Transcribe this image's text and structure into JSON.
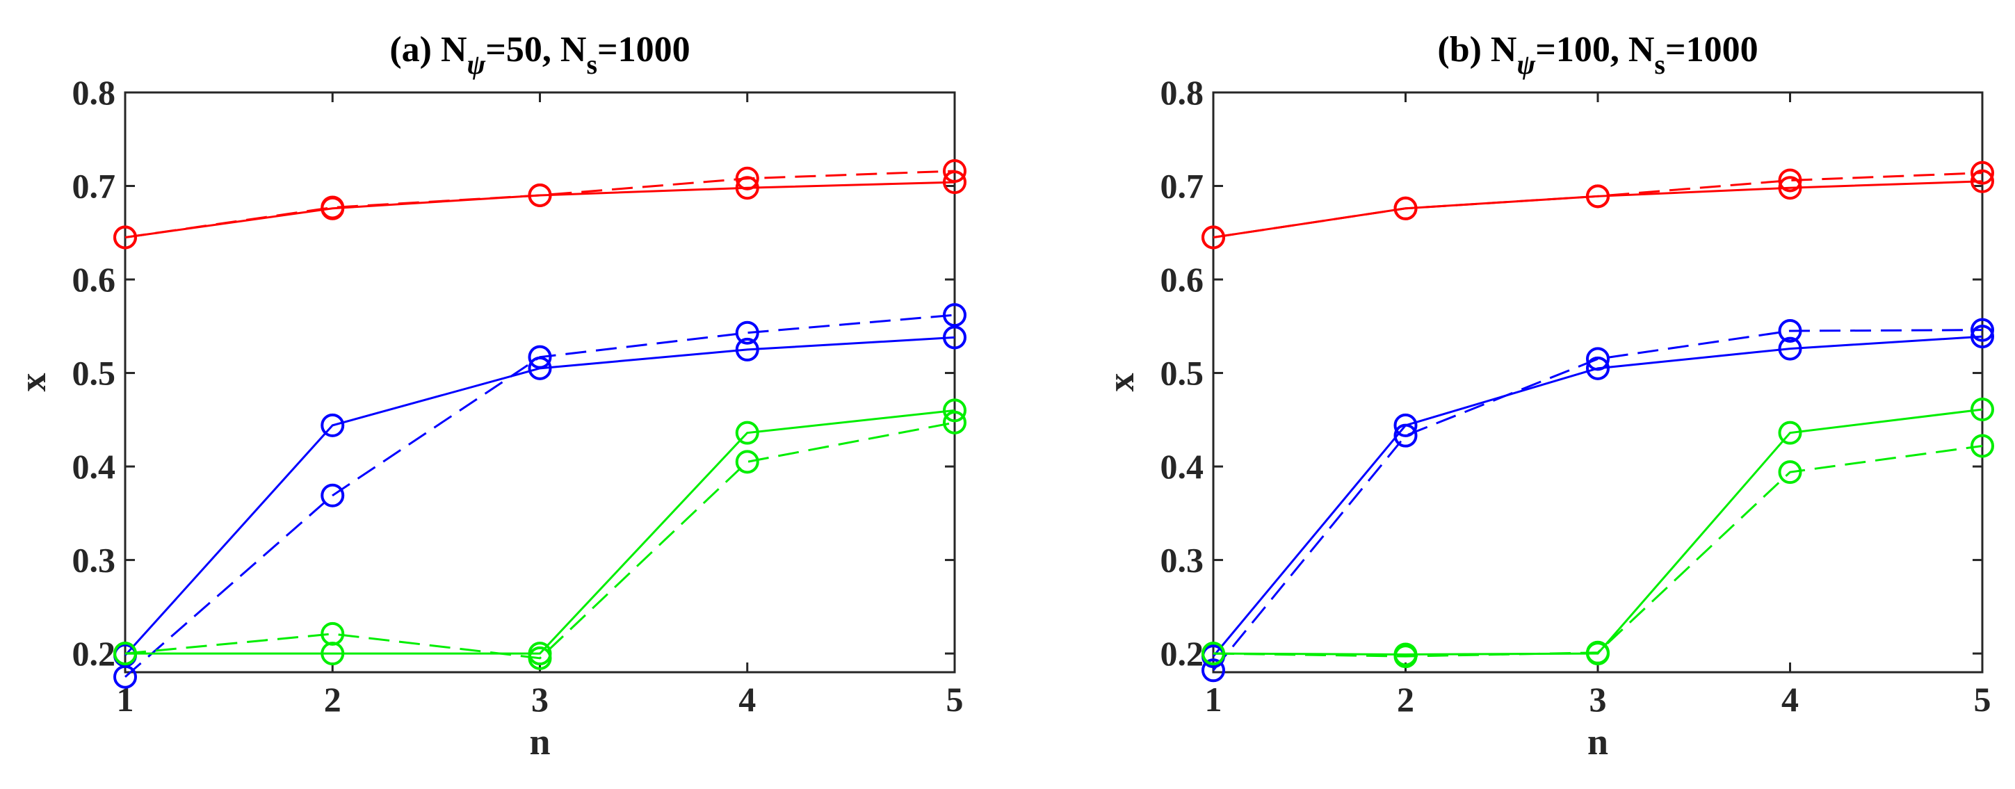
{
  "chart_data": [
    {
      "type": "line",
      "title_parts": [
        "(a) N",
        "ψ",
        "=50, N",
        "s",
        "=1000"
      ],
      "xlabel": "n",
      "ylabel": "x",
      "x": [
        1,
        2,
        3,
        4,
        5
      ],
      "xlim": [
        1,
        5
      ],
      "ylim": [
        0.18,
        0.8
      ],
      "xticks": [
        "1",
        "2",
        "3",
        "4",
        "5"
      ],
      "yticks": [
        "0.2",
        "0.3",
        "0.4",
        "0.5",
        "0.6",
        "0.7",
        "0.8"
      ],
      "ytick_values": [
        0.2,
        0.3,
        0.4,
        0.5,
        0.6,
        0.7,
        0.8
      ],
      "grid": false,
      "series": [
        {
          "name": "red-solid",
          "color": "#ff0000",
          "style": "solid",
          "values": [
            0.645,
            0.676,
            0.69,
            0.698,
            0.704
          ]
        },
        {
          "name": "red-dashed",
          "color": "#ff0000",
          "style": "dashed",
          "values": [
            0.645,
            0.677,
            0.69,
            0.708,
            0.716
          ]
        },
        {
          "name": "blue-solid",
          "color": "#0000ff",
          "style": "solid",
          "values": [
            0.198,
            0.444,
            0.505,
            0.525,
            0.538
          ]
        },
        {
          "name": "blue-dashed",
          "color": "#0000ff",
          "style": "dashed",
          "values": [
            0.175,
            0.369,
            0.517,
            0.543,
            0.562
          ]
        },
        {
          "name": "green-solid",
          "color": "#00ee00",
          "style": "solid",
          "values": [
            0.2,
            0.2,
            0.2,
            0.436,
            0.46
          ]
        },
        {
          "name": "green-dashed",
          "color": "#00ee00",
          "style": "dashed",
          "values": [
            0.2,
            0.221,
            0.195,
            0.405,
            0.447
          ]
        }
      ]
    },
    {
      "type": "line",
      "title_parts": [
        "(b) N",
        "ψ",
        "=100, N",
        "s",
        "=1000"
      ],
      "xlabel": "n",
      "ylabel": "x",
      "x": [
        1,
        2,
        3,
        4,
        5
      ],
      "xlim": [
        1,
        5
      ],
      "ylim": [
        0.18,
        0.8
      ],
      "xticks": [
        "1",
        "2",
        "3",
        "4",
        "5"
      ],
      "yticks": [
        "0.2",
        "0.3",
        "0.4",
        "0.5",
        "0.6",
        "0.7",
        "0.8"
      ],
      "ytick_values": [
        0.2,
        0.3,
        0.4,
        0.5,
        0.6,
        0.7,
        0.8
      ],
      "grid": false,
      "series": [
        {
          "name": "red-solid",
          "color": "#ff0000",
          "style": "solid",
          "values": [
            0.645,
            0.676,
            0.689,
            0.698,
            0.705
          ]
        },
        {
          "name": "red-dashed",
          "color": "#ff0000",
          "style": "dashed",
          "values": [
            0.645,
            0.676,
            0.689,
            0.706,
            0.714
          ]
        },
        {
          "name": "blue-solid",
          "color": "#0000ff",
          "style": "solid",
          "values": [
            0.197,
            0.444,
            0.505,
            0.526,
            0.539
          ]
        },
        {
          "name": "blue-dashed",
          "color": "#0000ff",
          "style": "dashed",
          "values": [
            0.182,
            0.433,
            0.515,
            0.545,
            0.546
          ]
        },
        {
          "name": "green-solid",
          "color": "#00ee00",
          "style": "solid",
          "values": [
            0.2,
            0.199,
            0.2,
            0.436,
            0.461
          ]
        },
        {
          "name": "green-dashed",
          "color": "#00ee00",
          "style": "dashed",
          "values": [
            0.2,
            0.197,
            0.201,
            0.394,
            0.422
          ]
        }
      ]
    }
  ]
}
